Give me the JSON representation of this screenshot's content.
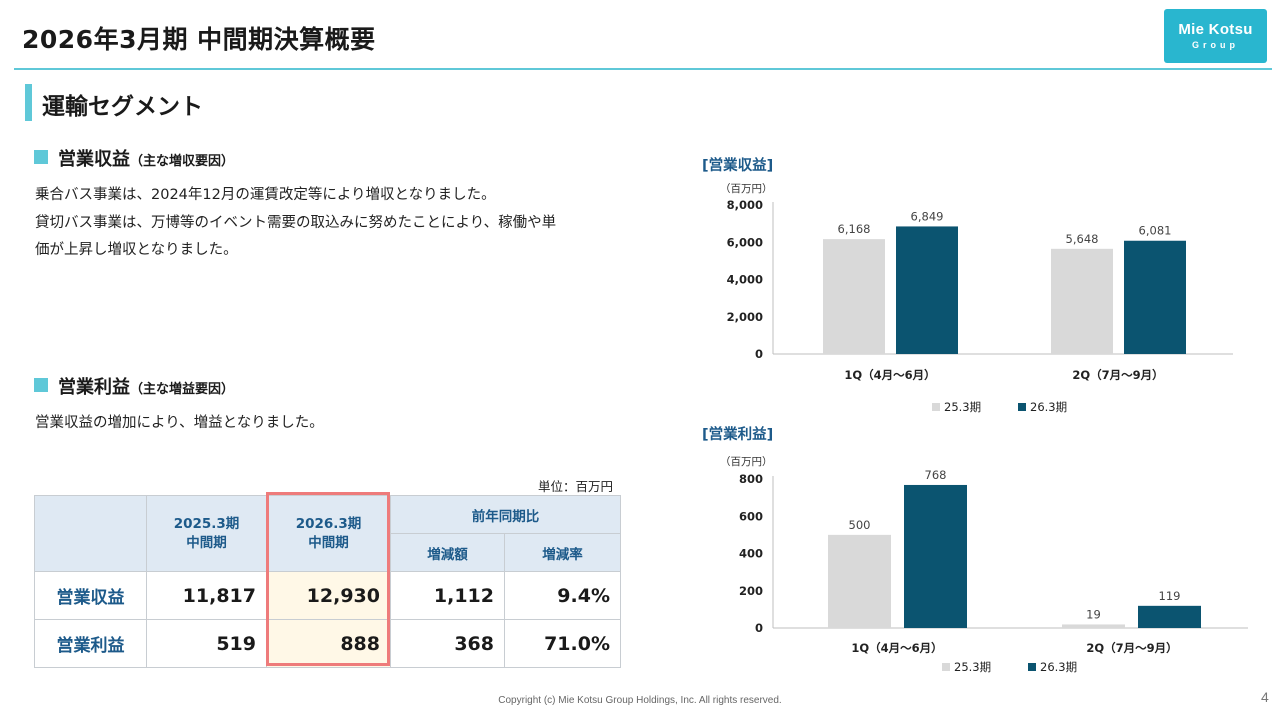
{
  "header": {
    "title": "2026年3月期 中間期決算概要",
    "logo_line1": "Mie Kotsu",
    "logo_line2": "Group"
  },
  "segment": {
    "title": "運輸セグメント"
  },
  "revenue_section": {
    "heading": "営業収益",
    "heading_note": "（主な増収要因）",
    "lines": [
      "乗合バス事業は、2024年12月の運賃改定等により増収となりました。",
      "貸切バス事業は、万博等のイベント需要の取込みに努めたことにより、稼働や単",
      "価が上昇し増収となりました。"
    ]
  },
  "profit_section": {
    "heading": "営業利益",
    "heading_note": "（主な増益要因）",
    "lines": [
      "営業収益の増加により、増益となりました。"
    ]
  },
  "table": {
    "unit": "単位：百万円",
    "col_prev_l1": "2025.3期",
    "col_prev_l2": "中間期",
    "col_curr_l1": "2026.3期",
    "col_curr_l2": "中間期",
    "col_yoy": "前年同期比",
    "col_diff": "増減額",
    "col_rate": "増減率",
    "rows": [
      {
        "label": "営業収益",
        "prev": "11,817",
        "curr": "12,930",
        "diff": "1,112",
        "rate": "9.4%"
      },
      {
        "label": "営業利益",
        "prev": "519",
        "curr": "888",
        "diff": "368",
        "rate": "71.0%"
      }
    ]
  },
  "chart_data": [
    {
      "type": "bar",
      "title": "[営業収益]",
      "ylabel": "（百万円）",
      "categories": [
        "1Q（4月～6月）",
        "2Q（7月～9月）"
      ],
      "series": [
        {
          "name": "25.3期",
          "values": [
            6168,
            5648
          ],
          "labels": [
            "6,168",
            "5,648"
          ],
          "color": "#d9d9d9"
        },
        {
          "name": "26.3期",
          "values": [
            6849,
            6081
          ],
          "labels": [
            "6,849",
            "6,081"
          ],
          "color": "#0b5470"
        }
      ],
      "ylim": [
        0,
        8000
      ],
      "yticks": [
        0,
        2000,
        4000,
        6000,
        8000
      ],
      "ytick_labels": [
        "0",
        "2,000",
        "4,000",
        "6,000",
        "8,000"
      ]
    },
    {
      "type": "bar",
      "title": "[営業利益]",
      "ylabel": "（百万円）",
      "categories": [
        "1Q（4月～6月）",
        "2Q（7月～9月）"
      ],
      "series": [
        {
          "name": "25.3期",
          "values": [
            500,
            19
          ],
          "labels": [
            "500",
            "19"
          ],
          "color": "#d9d9d9"
        },
        {
          "name": "26.3期",
          "values": [
            768,
            119
          ],
          "labels": [
            "768",
            "119"
          ],
          "color": "#0b5470"
        }
      ],
      "ylim": [
        0,
        800
      ],
      "yticks": [
        0,
        200,
        400,
        600,
        800
      ],
      "ytick_labels": [
        "0",
        "200",
        "400",
        "600",
        "800"
      ]
    }
  ],
  "footer": {
    "copyright": "Copyright (c) Mie Kotsu Group Holdings, Inc. All rights reserved.",
    "page": "4"
  }
}
